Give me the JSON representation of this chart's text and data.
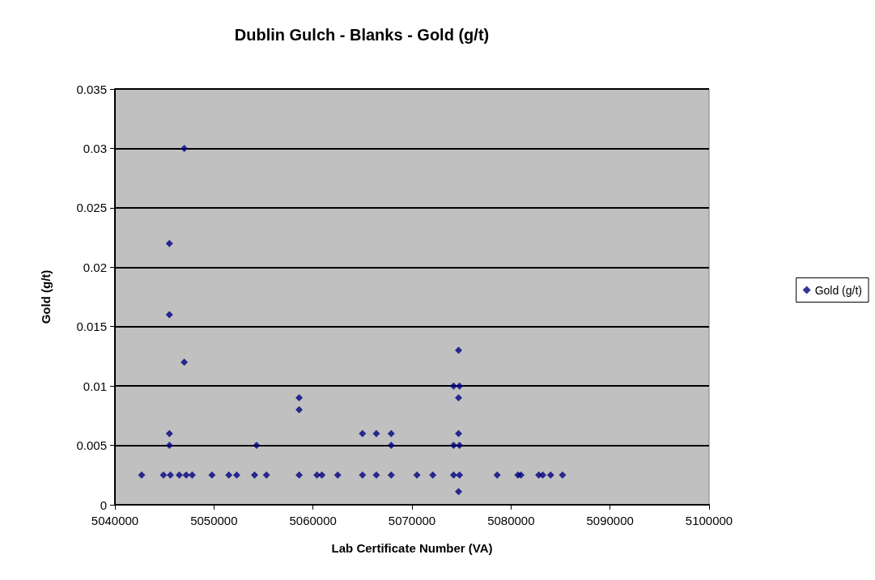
{
  "chart_data": {
    "type": "scatter",
    "title": "Dublin Gulch - Blanks - Gold (g/t)",
    "xlabel": "Lab Certificate Number (VA)",
    "ylabel": "Gold (g/t)",
    "series": [
      {
        "name": "Gold (g/t)",
        "color": "#000080",
        "x": [
          5042700,
          5044900,
          5045600,
          5046500,
          5047200,
          5047800,
          5049800,
          5051500,
          5052300,
          5054100,
          5055300,
          5058600,
          5060400,
          5060900,
          5062500,
          5065000,
          5066400,
          5067900,
          5070500,
          5072100,
          5074200,
          5074800,
          5078600,
          5080700,
          5081000,
          5082800,
          5083200,
          5084000,
          5085200,
          5047000,
          5045500,
          5045500,
          5047000,
          5045500,
          5045500,
          5054300,
          5058600,
          5058600,
          5074700,
          5074200,
          5074800,
          5074700,
          5065000,
          5066400,
          5067900,
          5074700,
          5067900,
          5074200,
          5074800,
          5074700
        ],
        "values": [
          0.0025,
          0.0025,
          0.0025,
          0.0025,
          0.0025,
          0.0025,
          0.0025,
          0.0025,
          0.0025,
          0.0025,
          0.0025,
          0.0025,
          0.0025,
          0.0025,
          0.0025,
          0.0025,
          0.0025,
          0.0025,
          0.0025,
          0.0025,
          0.0025,
          0.0025,
          0.0025,
          0.0025,
          0.0025,
          0.0025,
          0.0025,
          0.0025,
          0.0025,
          0.03,
          0.022,
          0.016,
          0.012,
          0.006,
          0.005,
          0.005,
          0.009,
          0.008,
          0.013,
          0.01,
          0.01,
          0.009,
          0.006,
          0.006,
          0.006,
          0.006,
          0.005,
          0.005,
          0.005,
          0.0011
        ]
      }
    ],
    "xlim": [
      5040000,
      5100000
    ],
    "xticks": [
      5040000,
      5050000,
      5060000,
      5070000,
      5080000,
      5090000,
      5100000
    ],
    "ylim": [
      0,
      0.035
    ],
    "yticks": [
      0,
      0.005,
      0.01,
      0.015,
      0.02,
      0.025,
      0.03,
      0.035
    ],
    "grid": "y",
    "legend": "right",
    "marker": "diamond"
  }
}
